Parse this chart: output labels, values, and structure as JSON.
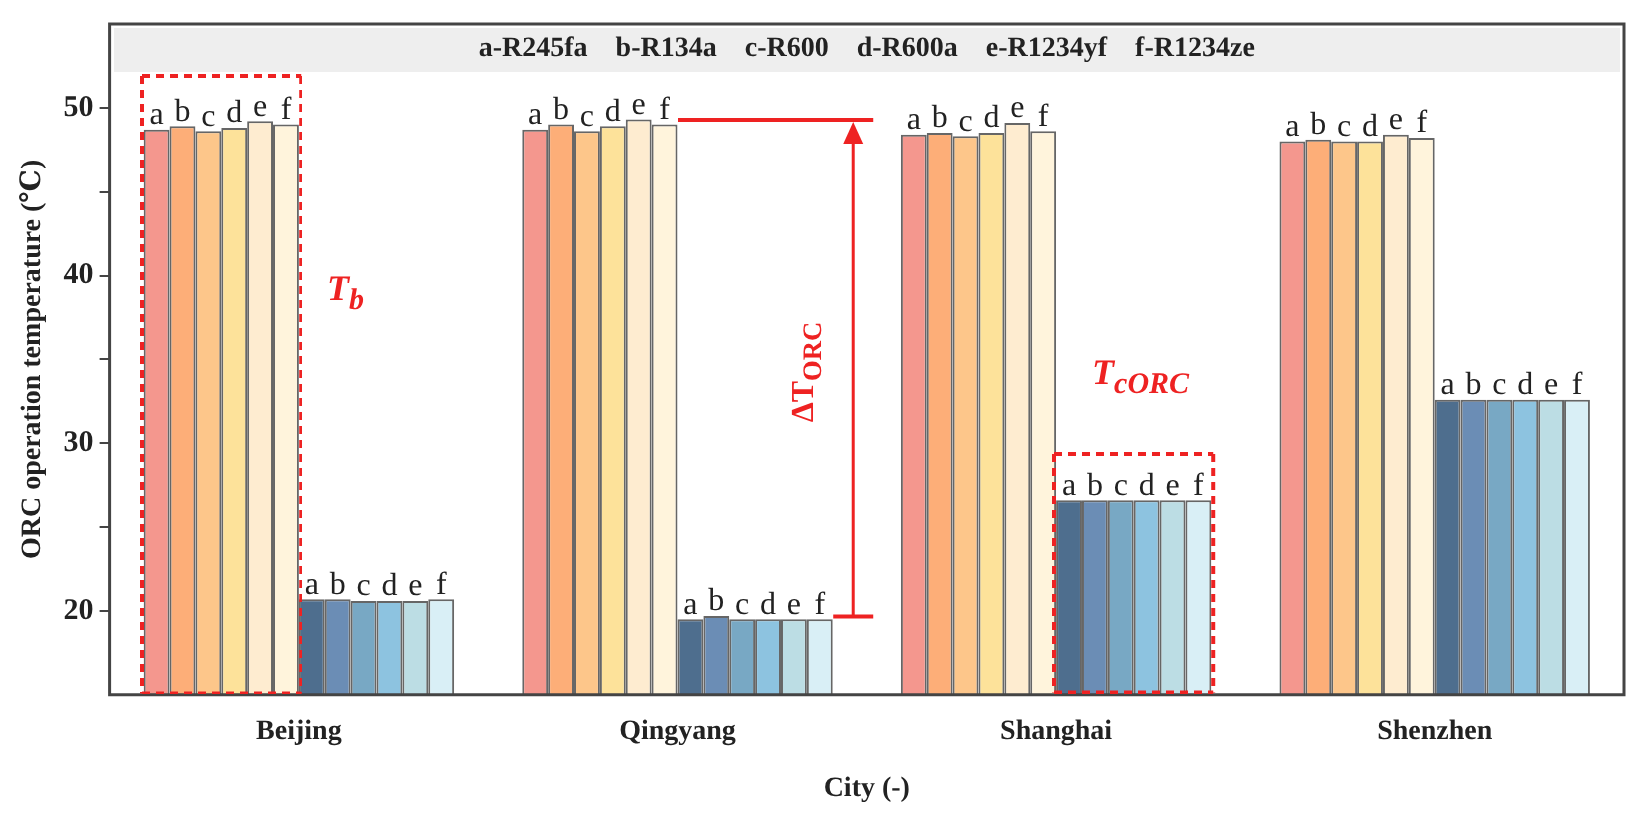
{
  "chart_data": {
    "type": "bar",
    "xlabel": "City (-)",
    "ylabel": "ORC operation temperature (℃)",
    "categories": [
      "Beijing",
      "Qingyang",
      "Shanghai",
      "Shenzhen"
    ],
    "series": [
      {
        "color": "#f4978e",
        "values": [
          48.7,
          48.7,
          48.4,
          48.0
        ],
        "value_labels": [
          "a",
          "a",
          "a",
          "a"
        ]
      },
      {
        "color": "#fdae78",
        "values": [
          48.9,
          49.0,
          48.5,
          48.1
        ],
        "value_labels": [
          "b",
          "b",
          "b",
          "b"
        ]
      },
      {
        "color": "#fdc68a",
        "values": [
          48.6,
          48.6,
          48.3,
          48.0
        ],
        "value_labels": [
          "c",
          "c",
          "c",
          "c"
        ]
      },
      {
        "color": "#fde29a",
        "values": [
          48.8,
          48.9,
          48.5,
          48.0
        ],
        "value_labels": [
          "d",
          "d",
          "d",
          "d"
        ]
      },
      {
        "color": "#feecd0",
        "values": [
          49.2,
          49.3,
          49.1,
          48.4
        ],
        "value_labels": [
          "e",
          "e",
          "e",
          "e"
        ]
      },
      {
        "color": "#fff4dc",
        "values": [
          49.0,
          49.0,
          48.6,
          48.2
        ],
        "value_labels": [
          "f",
          "f",
          "f",
          "f"
        ]
      },
      {
        "color": "#4e6e8e",
        "values": [
          20.7,
          19.5,
          26.6,
          32.6
        ],
        "value_labels": [
          "a",
          "a",
          "a",
          "a"
        ]
      },
      {
        "color": "#6b8db5",
        "values": [
          20.7,
          19.7,
          26.6,
          32.6
        ],
        "value_labels": [
          "b",
          "b",
          "b",
          "b"
        ]
      },
      {
        "color": "#78a8c4",
        "values": [
          20.6,
          19.5,
          26.6,
          32.6
        ],
        "value_labels": [
          "c",
          "c",
          "c",
          "c"
        ]
      },
      {
        "color": "#8dc3e0",
        "values": [
          20.6,
          19.5,
          26.6,
          32.6
        ],
        "value_labels": [
          "d",
          "d",
          "d",
          "d"
        ]
      },
      {
        "color": "#bcdde4",
        "values": [
          20.6,
          19.5,
          26.6,
          32.6
        ],
        "value_labels": [
          "e",
          "e",
          "e",
          "e"
        ]
      },
      {
        "color": "#d9eff6",
        "values": [
          20.7,
          19.5,
          26.6,
          32.6
        ],
        "value_labels": [
          "f",
          "f",
          "f",
          "f"
        ]
      }
    ],
    "ylim": [
      15,
      55
    ],
    "yticks": [
      20,
      {
        "value": 25,
        "label": null
      },
      30,
      {
        "value": 35,
        "label": null
      },
      40,
      {
        "value": 45,
        "label": null
      },
      50
    ],
    "grid": false,
    "annotations": [
      "a-R245fa    b-R134a    c-R600    d-R600a    e-R1234yf    f-R1234ze",
      "T$_{b}$",
      "ΔT$_{ORC}$",
      "T$_{cORC}$"
    ]
  }
}
